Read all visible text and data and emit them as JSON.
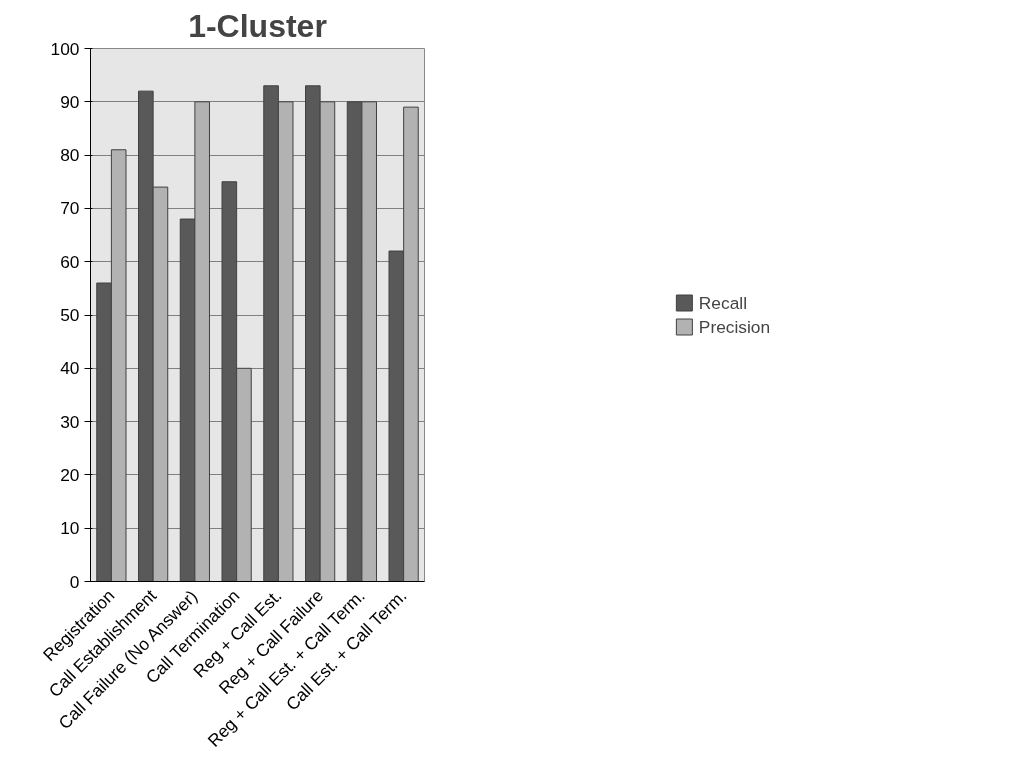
{
  "chart_data": {
    "type": "bar",
    "title": "1-Cluster",
    "categories": [
      "Registration",
      "Call Establishment",
      "Call Failure (No Answer)",
      "Call Termination",
      "Reg + Call Est.",
      "Reg + Call Failure",
      "Reg + Call Est. + Call Term.",
      "Call Est. + Call Term."
    ],
    "series": [
      {
        "name": "Recall",
        "color": "#595959",
        "values": [
          56,
          92,
          68,
          75,
          93,
          93,
          90,
          62
        ]
      },
      {
        "name": "Precision",
        "color": "#b2b2b2",
        "values": [
          81,
          74,
          90,
          40,
          90,
          90,
          90,
          89
        ]
      }
    ],
    "ylim": [
      0,
      100
    ],
    "yticks": [
      0,
      10,
      20,
      30,
      40,
      50,
      60,
      70,
      80,
      90,
      100
    ],
    "grid": "y",
    "legend": "right"
  }
}
